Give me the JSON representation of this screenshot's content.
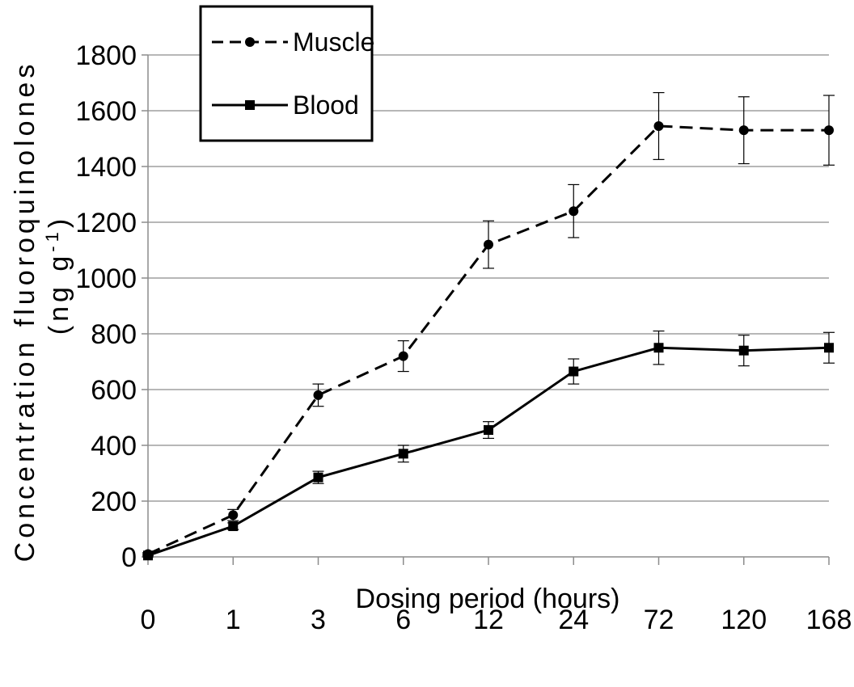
{
  "chart_data": {
    "type": "line",
    "categories": [
      "0",
      "1",
      "3",
      "6",
      "12",
      "24",
      "72",
      "120",
      "168"
    ],
    "xlabel": "Dosing period (hours)",
    "ylabel_line1": "Concentration fluoroquinolones",
    "ylabel_line2_prefix": "(ng g",
    "ylabel_line2_sup": "-1",
    "ylabel_line2_suffix": ")",
    "ylim": [
      0,
      1800
    ],
    "yticks": [
      0,
      200,
      400,
      600,
      800,
      1000,
      1200,
      1400,
      1600,
      1800
    ],
    "grid": true,
    "legend_position": "top-left",
    "series": [
      {
        "name": "Muscle",
        "style": "dashed",
        "marker": "circle",
        "color": "#000000",
        "values": [
          10,
          150,
          580,
          720,
          1120,
          1240,
          1545,
          1530,
          1530
        ],
        "errors": [
          5,
          20,
          40,
          55,
          85,
          95,
          120,
          120,
          125
        ]
      },
      {
        "name": "Blood",
        "style": "solid",
        "marker": "square",
        "color": "#000000",
        "values": [
          5,
          110,
          285,
          370,
          455,
          665,
          750,
          740,
          750
        ],
        "errors": [
          5,
          12,
          22,
          30,
          30,
          45,
          60,
          55,
          55
        ]
      }
    ]
  }
}
